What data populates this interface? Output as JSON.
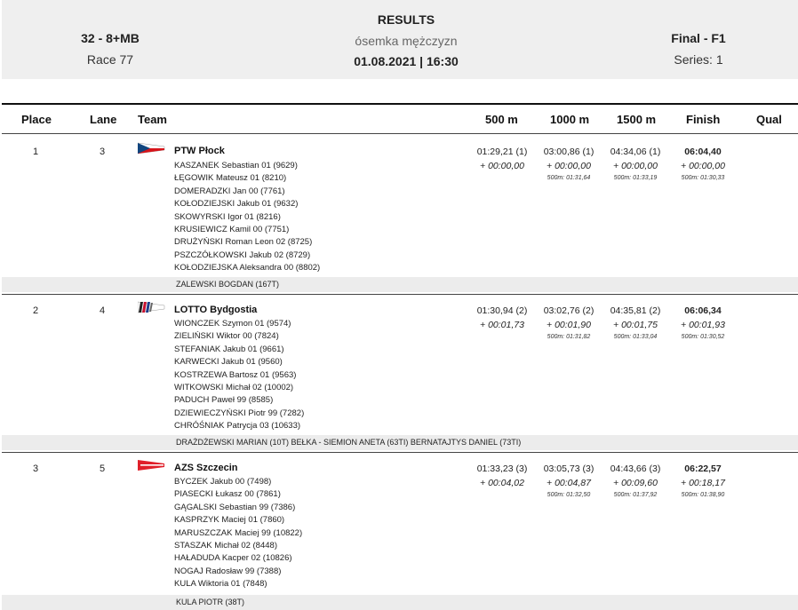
{
  "header": {
    "event": "32 - 8+MB",
    "race": "Race 77",
    "title": "RESULTS",
    "subtitle": "ósemka mężczyzn",
    "datetime": "01.08.2021 | 16:30",
    "phase": "Final - F1",
    "series": "Series: 1"
  },
  "columns": {
    "place": "Place",
    "lane": "Lane",
    "team": "Team",
    "c500": "500 m",
    "c1000": "1000 m",
    "c1500": "1500 m",
    "finish": "Finish",
    "qual": "Qual"
  },
  "colors": {
    "header_bg": "#efefef",
    "coach_bg": "#ececec"
  },
  "rows": [
    {
      "place": "1",
      "lane": "3",
      "team": "PTW Płock",
      "flag_icon": "czech-flag-icon",
      "crew": [
        "KASZANEK  Sebastian 01 (9629)",
        "ŁĘGOWIK  Mateusz 01 (8210)",
        "DOMERADZKI  Jan 00 (7761)",
        "KOŁODZIEJSKI  Jakub 01 (9632)",
        "SKOWYRSKI  Igor 01 (8216)",
        "KRUSIEWICZ  Kamil 00 (7751)",
        "DRUŻYŃSKI  Roman Leon 02 (8725)",
        "PSZCZÓŁKOWSKI  Jakub 02 (8729)",
        "KOŁODZIEJSKA  Aleksandra 00 (8802)"
      ],
      "coach": "ZALEWSKI BOGDAN (167T)",
      "splits": [
        {
          "t": "01:29,21 (1)",
          "d": "+ 00:00,00",
          "s": ""
        },
        {
          "t": "03:00,86 (1)",
          "d": "+ 00:00,00",
          "s": "500m: 01:31,64"
        },
        {
          "t": "04:34,06 (1)",
          "d": "+ 00:00,00",
          "s": "500m: 01:33,19"
        },
        {
          "t": "06:04,40",
          "d": "+ 00:00,00",
          "s": "500m: 01:30,33"
        }
      ]
    },
    {
      "place": "2",
      "lane": "4",
      "team": "LOTTO Bydgostia",
      "flag_icon": "stripes-flag-icon",
      "crew": [
        "WIONCZEK  Szymon 01 (9574)",
        "ZIELIŃSKI  Wiktor 00 (7824)",
        "STEFANIAK  Jakub 01 (9661)",
        "KARWECKI  Jakub 01 (9560)",
        "KOSTRZEWA  Bartosz 01 (9563)",
        "WITKOWSKI  Michał 02 (10002)",
        "PADUCH  Paweł 99 (8585)",
        "DZIEWIECZYŃSKI  Piotr 99 (7282)",
        "CHRÓŚNIAK  Patrycja 03 (10633)"
      ],
      "coach": "DRAŻDŻEWSKI MARIAN (10T) BEŁKA - SIEMION ANETA (63TI) BERNATAJTYS DANIEL (73TI)",
      "splits": [
        {
          "t": "01:30,94 (2)",
          "d": "+ 00:01,73",
          "s": ""
        },
        {
          "t": "03:02,76 (2)",
          "d": "+ 00:01,90",
          "s": "500m: 01:31,82"
        },
        {
          "t": "04:35,81 (2)",
          "d": "+ 00:01,75",
          "s": "500m: 01:33,04"
        },
        {
          "t": "06:06,34",
          "d": "+ 00:01,93",
          "s": "500m: 01:30,52"
        }
      ]
    },
    {
      "place": "3",
      "lane": "5",
      "team": "AZS Szczecin",
      "flag_icon": "red-white-flag-icon",
      "crew": [
        "BYCZEK  Jakub 00 (7498)",
        "PIASECKI  Łukasz 00 (7861)",
        "GĄGALSKI  Sebastian 99 (7386)",
        "KASPRZYK  Maciej 01 (7860)",
        "MARUSZCZAK  Maciej 99 (10822)",
        "STASZAK  Michał 02 (8448)",
        "HAŁADUDA  Kacper 02 (10826)",
        "NOGAJ  Radosław 99 (7388)",
        "KULA  Wiktoria 01 (7848)"
      ],
      "coach": "KULA PIOTR (38T)",
      "splits": [
        {
          "t": "01:33,23 (3)",
          "d": "+ 00:04,02",
          "s": ""
        },
        {
          "t": "03:05,73 (3)",
          "d": "+ 00:04,87",
          "s": "500m: 01:32,50"
        },
        {
          "t": "04:43,66 (3)",
          "d": "+ 00:09,60",
          "s": "500m: 01:37,92"
        },
        {
          "t": "06:22,57",
          "d": "+ 00:18,17",
          "s": "500m: 01:38,90"
        }
      ]
    }
  ]
}
